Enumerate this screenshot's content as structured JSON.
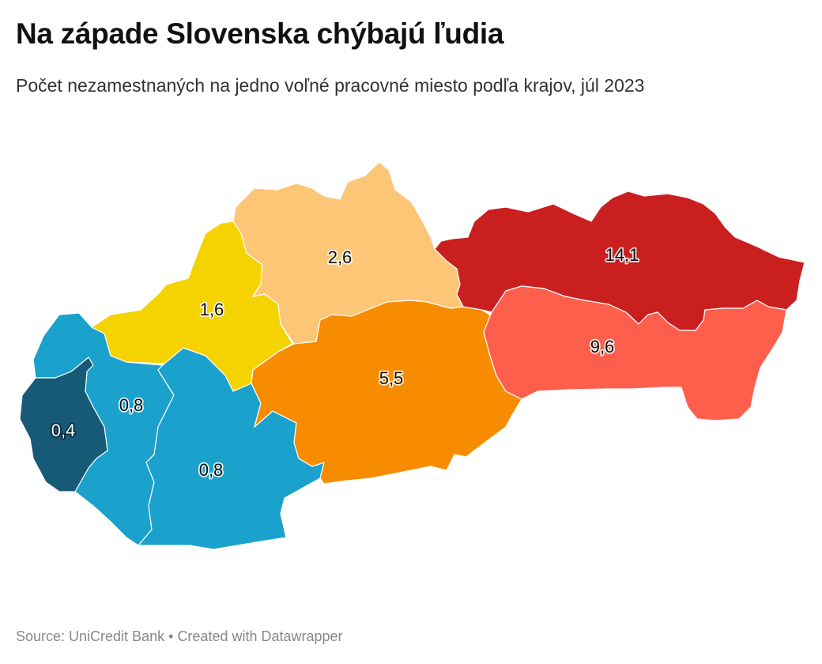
{
  "title": "Na západe Slovenska chýbajú ľudia",
  "subtitle": "Počet nezamestnaných na jedno voľné pracovné miesto podľa krajov, júl 2023",
  "footer": {
    "source": "Source: UniCredit Bank",
    "separator": "•",
    "credit": "Created with Datawrapper"
  },
  "map": {
    "regions": [
      {
        "label": "0,4",
        "value": 0.4,
        "color": "#175a78"
      },
      {
        "label": "0,8",
        "value": 0.8,
        "color": "#1aa1cc"
      },
      {
        "label": "0,8",
        "value": 0.8,
        "color": "#1aa1cc"
      },
      {
        "label": "1,6",
        "value": 1.6,
        "color": "#f5d300"
      },
      {
        "label": "2,6",
        "value": 2.6,
        "color": "#fcc676"
      },
      {
        "label": "5,5",
        "value": 5.5,
        "color": "#f88c00"
      },
      {
        "label": "9,6",
        "value": 9.6,
        "color": "#fd5f4c"
      },
      {
        "label": "14,1",
        "value": 14.1,
        "color": "#c91f1f"
      }
    ]
  }
}
